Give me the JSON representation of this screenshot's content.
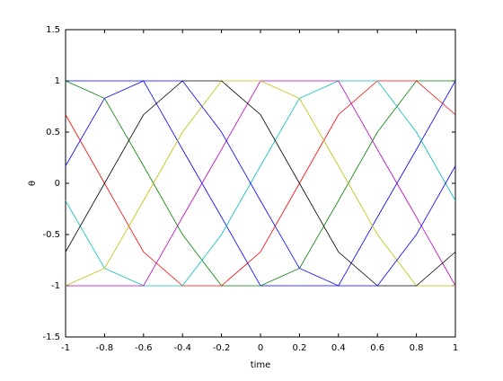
{
  "chart_data": {
    "type": "line",
    "x_label": "time",
    "y_label": "θ",
    "x": [
      -1,
      -0.8,
      -0.6,
      -0.4,
      -0.2,
      0,
      0.2,
      0.4,
      0.6,
      0.8,
      1
    ],
    "series": [
      {
        "color": "#0000ff",
        "values": [
          1,
          1,
          1,
          0.33,
          -0.33,
          -1,
          -1,
          -1,
          -0.33,
          0.33,
          1
        ]
      },
      {
        "color": "#008000",
        "values": [
          1,
          0.83,
          0.17,
          -0.5,
          -1,
          -1,
          -0.83,
          -0.17,
          0.5,
          1,
          1
        ]
      },
      {
        "color": "#ff0000",
        "values": [
          0.67,
          0,
          -0.67,
          -1,
          -1,
          -0.67,
          0,
          0.67,
          1,
          1,
          0.67
        ]
      },
      {
        "color": "#00bfbf",
        "values": [
          -0.17,
          -0.83,
          -1,
          -1,
          -0.5,
          0.17,
          0.83,
          1,
          1,
          0.5,
          -0.17
        ]
      },
      {
        "color": "#bf00bf",
        "values": [
          -1,
          -1,
          -1,
          -0.33,
          0.33,
          1,
          1,
          1,
          0.33,
          -0.33,
          -1
        ]
      },
      {
        "color": "#bfbf00",
        "values": [
          -1,
          -0.83,
          -0.17,
          0.5,
          1,
          1,
          0.83,
          0.17,
          -0.5,
          -1,
          -1
        ]
      },
      {
        "color": "#000000",
        "values": [
          -0.67,
          0,
          0.67,
          1,
          1,
          0.67,
          0,
          -0.67,
          -1,
          -1,
          -0.67
        ]
      },
      {
        "color": "#0000ff",
        "values": [
          0.17,
          0.83,
          1,
          1,
          0.5,
          -0.17,
          -0.83,
          -1,
          -1,
          -0.5,
          0.17
        ]
      }
    ],
    "xlim": [
      -1,
      1
    ],
    "xticks": [
      -1,
      -0.8,
      -0.6,
      -0.4,
      -0.2,
      0,
      0.2,
      0.4,
      0.6,
      0.8,
      1
    ],
    "ylim": [
      -1.5,
      1.5
    ],
    "yticks": [
      -1.5,
      -1,
      -0.5,
      0,
      0.5,
      1,
      1.5
    ],
    "grid": false
  }
}
